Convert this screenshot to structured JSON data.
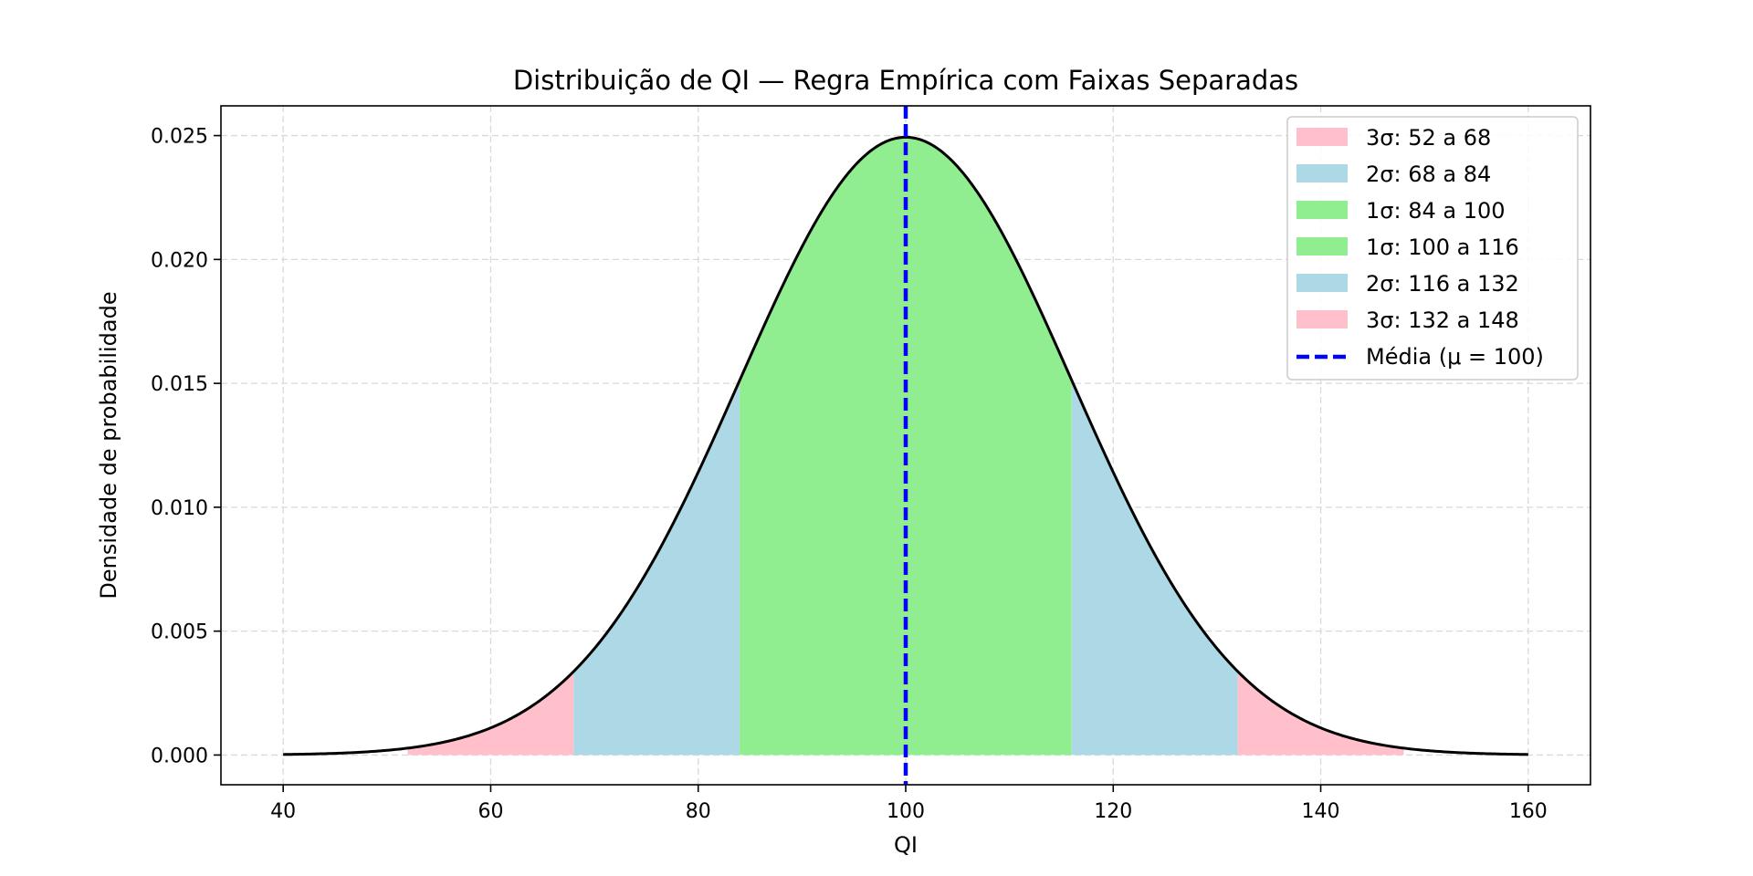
{
  "chart_data": {
    "type": "area",
    "title": "Distribuição de QI — Regra Empírica com Faixas Separadas",
    "xlabel": "QI",
    "ylabel": "Densidade de probabilidade",
    "xlim": [
      34,
      166
    ],
    "ylim": [
      -0.0012,
      0.0262
    ],
    "grid": true,
    "legend_position": "top-right",
    "distribution": {
      "mean": 100,
      "sd": 16,
      "x_range": [
        40,
        160
      ]
    },
    "x_ticks": [
      {
        "value": 40,
        "label": "40"
      },
      {
        "value": 60,
        "label": "60"
      },
      {
        "value": 80,
        "label": "80"
      },
      {
        "value": 100,
        "label": "100"
      },
      {
        "value": 120,
        "label": "120"
      },
      {
        "value": 140,
        "label": "140"
      },
      {
        "value": 160,
        "label": "160"
      }
    ],
    "y_ticks": [
      {
        "value": 0.0,
        "label": "0.000"
      },
      {
        "value": 0.005,
        "label": "0.005"
      },
      {
        "value": 0.01,
        "label": "0.010"
      },
      {
        "value": 0.015,
        "label": "0.015"
      },
      {
        "value": 0.02,
        "label": "0.020"
      },
      {
        "value": 0.025,
        "label": "0.025"
      }
    ],
    "bands": [
      {
        "name": "3σ: 52 a 68",
        "from": 52,
        "to": 68,
        "color": "#ffc0cb"
      },
      {
        "name": "2σ: 68 a 84",
        "from": 68,
        "to": 84,
        "color": "#add8e6"
      },
      {
        "name": "1σ: 84 a 100",
        "from": 84,
        "to": 100,
        "color": "#90ee90"
      },
      {
        "name": "1σ: 100 a 116",
        "from": 100,
        "to": 116,
        "color": "#90ee90"
      },
      {
        "name": "2σ: 116 a 132",
        "from": 116,
        "to": 132,
        "color": "#add8e6"
      },
      {
        "name": "3σ: 132 a 148",
        "from": 132,
        "to": 148,
        "color": "#ffc0cb"
      }
    ],
    "mean_line": {
      "name": "Média (μ = 100)",
      "x": 100,
      "color": "#0000ff"
    },
    "curve_color": "#000000"
  }
}
